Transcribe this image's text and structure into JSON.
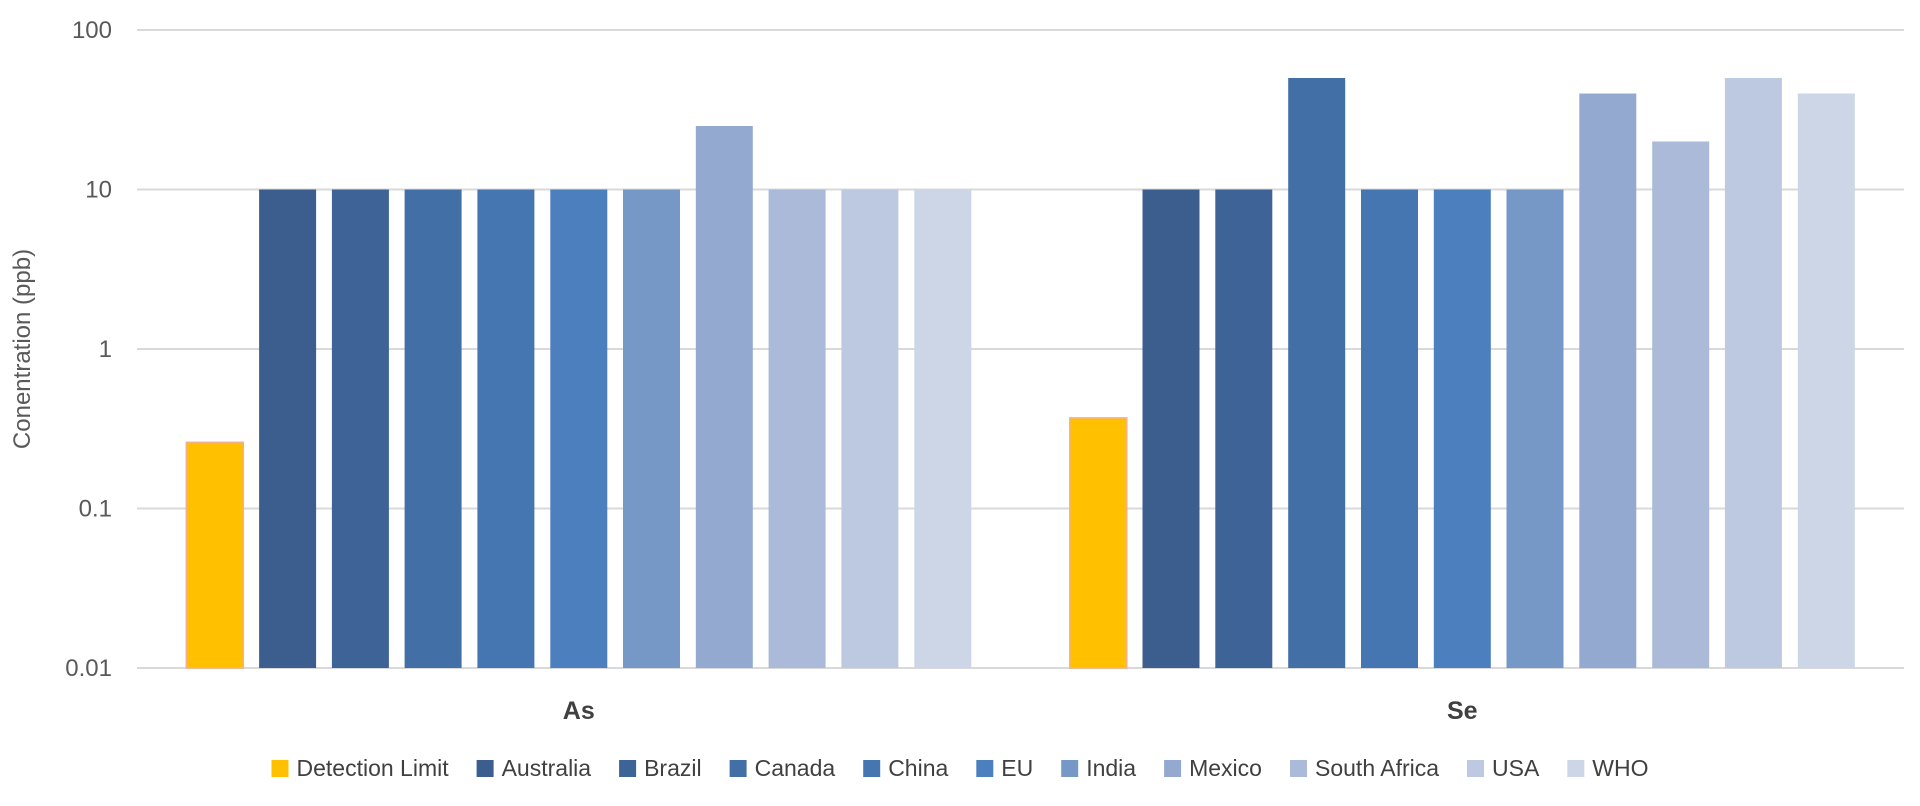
{
  "chart_data": {
    "type": "bar",
    "scale": "log",
    "categories": [
      "As",
      "Se"
    ],
    "ylabel": "Conentration (ppb)",
    "ylim": [
      0.01,
      100
    ],
    "yticks": [
      "0.01",
      "0.1",
      "1",
      "10",
      "100"
    ],
    "grid": true,
    "legend_position": "bottom",
    "series": [
      {
        "name": "Detection Limit",
        "color": "#FFC000",
        "values": [
          0.26,
          0.37
        ]
      },
      {
        "name": "Australia",
        "color": "#3B5E8E",
        "values": [
          10,
          10
        ]
      },
      {
        "name": "Brazil",
        "color": "#3D6397",
        "values": [
          10,
          10
        ]
      },
      {
        "name": "Canada",
        "color": "#4270A6",
        "values": [
          10,
          50
        ]
      },
      {
        "name": "China",
        "color": "#4576B1",
        "values": [
          10,
          10
        ]
      },
      {
        "name": "EU",
        "color": "#4C7FBD",
        "values": [
          10,
          10
        ]
      },
      {
        "name": "India",
        "color": "#7698C7",
        "values": [
          10,
          10
        ]
      },
      {
        "name": "Mexico",
        "color": "#93A9D0",
        "values": [
          25,
          40
        ]
      },
      {
        "name": "South Africa",
        "color": "#AABAD8",
        "values": [
          10,
          20
        ]
      },
      {
        "name": "USA",
        "color": "#BCC9E1",
        "values": [
          10,
          50
        ]
      },
      {
        "name": "WHO",
        "color": "#CCD6E7",
        "values": [
          10,
          40
        ]
      }
    ]
  }
}
